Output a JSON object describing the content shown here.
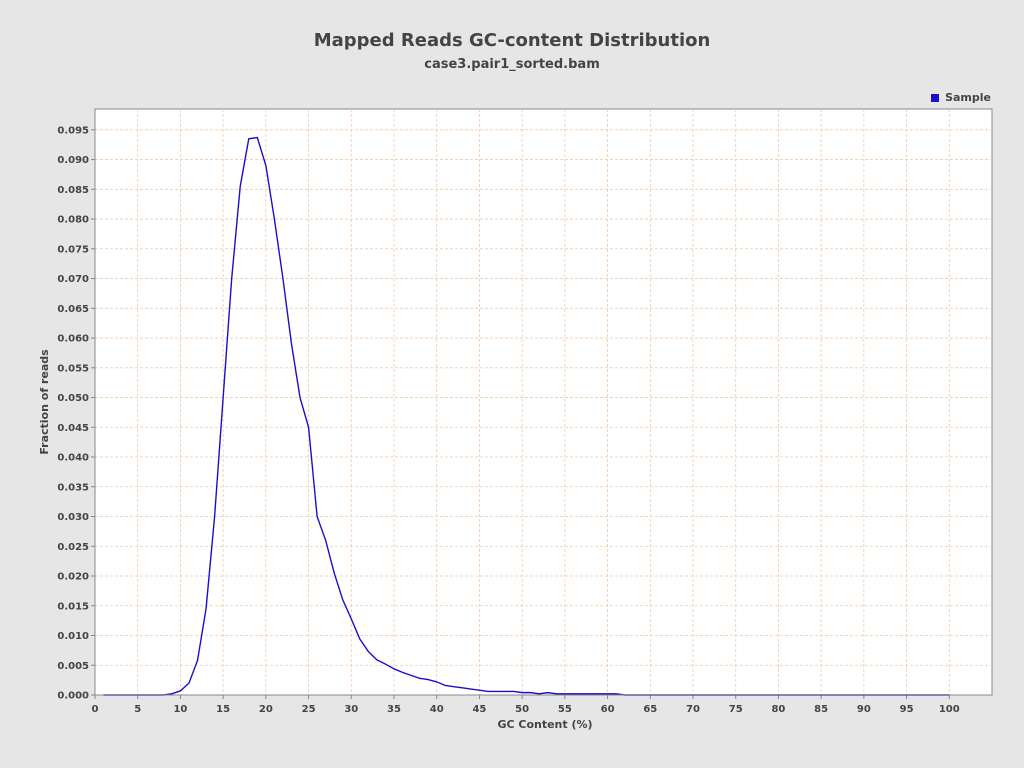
{
  "chart_data": {
    "type": "line",
    "title": "Mapped Reads GC-content Distribution",
    "subtitle": "case3.pair1_sorted.bam",
    "xlabel": "GC Content (%)",
    "ylabel": "Fraction of reads",
    "xlim": [
      0,
      105
    ],
    "ylim": [
      0,
      0.0985
    ],
    "x_ticks": [
      0,
      5,
      10,
      15,
      20,
      25,
      30,
      35,
      40,
      45,
      50,
      55,
      60,
      65,
      70,
      75,
      80,
      85,
      90,
      95,
      100
    ],
    "y_ticks": [
      0.0,
      0.005,
      0.01,
      0.015,
      0.02,
      0.025,
      0.03,
      0.035,
      0.04,
      0.045,
      0.05,
      0.055,
      0.06,
      0.065,
      0.07,
      0.075,
      0.08,
      0.085,
      0.09,
      0.095
    ],
    "y_tick_labels": [
      "0.000",
      "0.005",
      "0.010",
      "0.015",
      "0.020",
      "0.025",
      "0.030",
      "0.035",
      "0.040",
      "0.045",
      "0.050",
      "0.055",
      "0.060",
      "0.065",
      "0.070",
      "0.075",
      "0.080",
      "0.085",
      "0.090",
      "0.095"
    ],
    "grid": true,
    "legend_position": "top-right",
    "series": [
      {
        "name": "Sample",
        "color": "#1a0ecc",
        "x": [
          1,
          2,
          3,
          4,
          5,
          6,
          7,
          8,
          9,
          10,
          11,
          12,
          13,
          14,
          15,
          16,
          17,
          18,
          19,
          20,
          21,
          22,
          23,
          24,
          25,
          26,
          27,
          28,
          29,
          30,
          31,
          32,
          33,
          34,
          35,
          36,
          37,
          38,
          39,
          40,
          41,
          42,
          43,
          44,
          45,
          46,
          47,
          48,
          49,
          50,
          51,
          52,
          53,
          54,
          55,
          56,
          57,
          58,
          59,
          60,
          61,
          62,
          63,
          64,
          65,
          66,
          67,
          68,
          69,
          70,
          71,
          72,
          73,
          74,
          75,
          76,
          77,
          78,
          79,
          80,
          81,
          82,
          83,
          84,
          85,
          86,
          87,
          88,
          89,
          90,
          91,
          92,
          93,
          94,
          95,
          96,
          97,
          98,
          99,
          100
        ],
        "y": [
          0,
          0,
          0,
          0,
          0,
          0,
          0,
          0,
          0.0002,
          0.0007,
          0.002,
          0.0058,
          0.0145,
          0.03,
          0.05,
          0.07,
          0.0855,
          0.0935,
          0.0937,
          0.089,
          0.08,
          0.07,
          0.059,
          0.05,
          0.045,
          0.03,
          0.026,
          0.0205,
          0.016,
          0.0128,
          0.0094,
          0.0073,
          0.0059,
          0.0052,
          0.0044,
          0.0038,
          0.0033,
          0.0028,
          0.0026,
          0.0022,
          0.0016,
          0.0014,
          0.0012,
          0.001,
          0.0008,
          0.0006,
          0.0006,
          0.0006,
          0.0006,
          0.0004,
          0.0004,
          0.0002,
          0.0004,
          0.0002,
          0.0002,
          0.0002,
          0.0002,
          0.0002,
          0.0002,
          0.0002,
          0.0002,
          0,
          0,
          0,
          0,
          0,
          0,
          0,
          0,
          0,
          0,
          0,
          0,
          0,
          0,
          0,
          0,
          0,
          0,
          0,
          0,
          0,
          0,
          0,
          0,
          0,
          0,
          0,
          0,
          0,
          0,
          0,
          0,
          0,
          0,
          0,
          0,
          0,
          0,
          0
        ]
      }
    ]
  }
}
